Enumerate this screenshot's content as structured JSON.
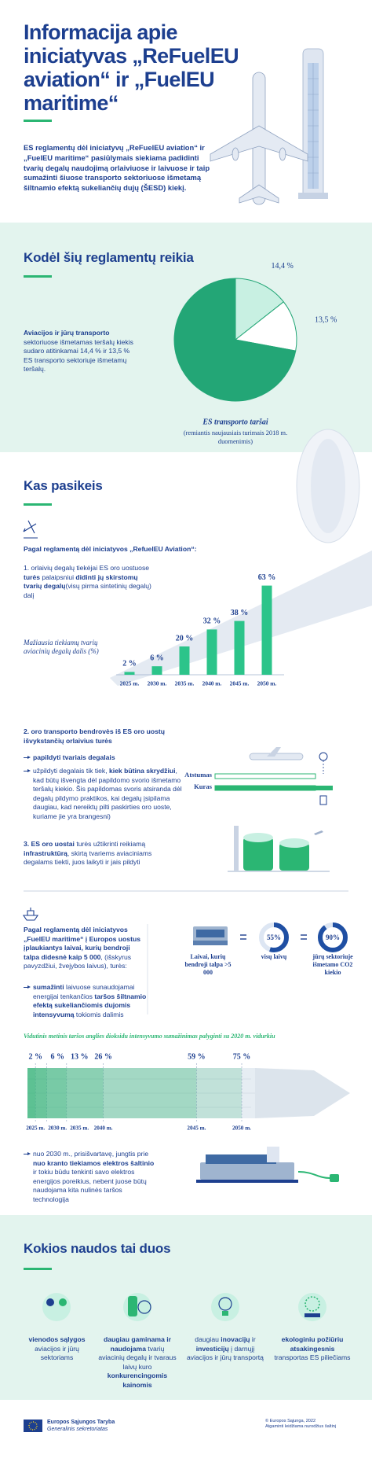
{
  "header": {
    "title": "Informacija apie iniciatyvas „ReFuelEU aviation“ ir „FuelEU maritime“",
    "intro": "ES reglamentų dėl iniciatyvų „ReFuelEU aviation“ ir „FuelEU maritime“ pasiūlymais siekiama padidinti tvarių degalų naudojimą orlaiviuose ir laivuose ir taip sumažinti šiuose transporto sektoriuose išmetamą šiltnamio efektą sukeliančių dujų (ŠESD) kiekį."
  },
  "why": {
    "title": "Kodėl šių reglamentų reikia",
    "text": [
      "Aviacijos ir jūrų transporto",
      " sektoriuose išmetamas teršalų kiekis sudaro atitinkamai 14,4 % ir 13,5 % ES transporto sektoriuje išmetamų teršalų."
    ]
  },
  "changes": {
    "title": "Kas pasikeis",
    "aviation_heading": "Pagal reglamentą dėl iniciatyvos „RefuelEU Aviation“:",
    "item1": [
      "1. orlaivių degalų tiekėjai ES oro uostuose ",
      "turės",
      " palaipsniui ",
      "didinti jų skirstomų tvarių degalų",
      "(visų pirma sintetinių degalų) dalį"
    ],
    "item2": {
      "heading": "2. oro transporto bendrovės iš ES oro uostų išvykstančių orlaivius turės",
      "bullet1": "papildyti tvariais degalais",
      "bullet2": [
        "užpildyti degalais tik tiek, ",
        "kiek būtina skrydžiui",
        ", kad būtų išvengta dėl papildomo svorio išmetamo teršalų kiekio. Šis papildomas svoris atsiranda dėl degalų pildymo praktikos, kai degalų įsipilama daugiau, kad nereiktų pilti paskirties oro uoste, kuriame jie yra brangesni)"
      ]
    },
    "distance_label": "Atstumas",
    "fuel_label": "Kuras",
    "item3": [
      "3. ES oro uostai",
      " turės užtikrinti reikiamą ",
      "infrastruktūrą",
      ", skirtą tvariems aviaciniams degalams tiekti, juos laikyti ir jais pildyti"
    ],
    "maritime_heading": [
      "Pagal reglamentą dėl iniciatyvos „FuelEU maritime“ į Europos uostus įplaukiantys laivai, kurių bendroji talpa didesnė kaip 5 000",
      ", (išskyrus pavyzdžiui, žvejybos laivus), turės:"
    ],
    "maritime_bullet": [
      "sumažinti",
      " laivuose sunaudojamai energijai tenkančios ",
      "taršos šiltnamio efektą sukeliančiomis dujomis intensyvumą",
      " tokiomis dalimis"
    ],
    "maritime_ship_label": "Laivai, kurių bendroji talpa >5 000",
    "last_bullet": [
      "nuo 2030 m.",
      ", prisišvartavę, jungtis prie ",
      "nuo kranto tiekiamos elektros šaltinio",
      " ir tokiu būdu tenkinti savo elektros energijos poreikius, nebent juose būtų naudojama kita nulinės taršos technologija"
    ]
  },
  "benefits": {
    "title": "Kokios naudos tai duos",
    "items": [
      [
        "vienodos sąlygos",
        " aviacijos ir jūrų sektoriams"
      ],
      [
        "daugiau gaminama ir naudojama",
        " tvarių aviacinių degalų ir tvaraus laivų kuro ",
        "konkurencingomis kainomis"
      ],
      [
        "daugiau ",
        "inovacijų",
        " ir ",
        "investicijų",
        " į darnųjį aviacijos ir jūrų transportą"
      ],
      [
        "ekologiniu požiūriu atsakingesnis",
        " transportas ES piliečiams"
      ]
    ]
  },
  "footer": {
    "org": "Europos Sąjungos Taryba",
    "unit": "Generalinis sekretoriatas",
    "copyright": "© Europos Sąjunga, 2022",
    "reuse": "Atgaminti leidžiama nurodžius šaltinį"
  },
  "chart_data": [
    {
      "type": "pie",
      "title": "ES transporto taršai",
      "subtitle": "(remiantis naujausiais turimais 2018 m. duomenimis)",
      "values": [
        14.4,
        13.5,
        72.1
      ],
      "value_labels": [
        "14,4 %",
        "13,5 %",
        null
      ],
      "colors": [
        "#c8f0e2",
        "#ffffff",
        "#23a676"
      ]
    },
    {
      "type": "bar",
      "y_label": "Mažiausia tiekiamų tvarių aviacinių degalų dalis (%)",
      "categories": [
        "2025 m.",
        "2030 m.",
        "2035 m.",
        "2040 m.",
        "2045 m.",
        "2050 m."
      ],
      "values": [
        2,
        6,
        20,
        32,
        38,
        63
      ],
      "value_labels": [
        "2 %",
        "6 %",
        "20 %",
        "32 %",
        "38 %",
        "63 %"
      ],
      "color": "#2cc48a"
    },
    {
      "type": "donut",
      "categories": [
        "visų laivų",
        "jūrų sektoriuje išmetamo CO2 kiekio"
      ],
      "values": [
        55,
        90
      ],
      "value_labels": [
        "55%",
        "90%"
      ],
      "color": "#1f4fa3"
    },
    {
      "type": "hbar",
      "title": "Vidutinis metinis taršos anglies dioksidu intensyvumo sumažinimas palyginti su 2020 m. vidurkiu",
      "categories": [
        "2025 m.",
        "2030 m.",
        "2035 m.",
        "2040 m.",
        "2045 m.",
        "2050 m."
      ],
      "values": [
        2,
        6,
        13,
        26,
        59,
        75
      ],
      "value_labels": [
        "2 %",
        "6 %",
        "13 %",
        "26 %",
        "59 %",
        "75 %"
      ],
      "color": "#2bb673"
    }
  ]
}
